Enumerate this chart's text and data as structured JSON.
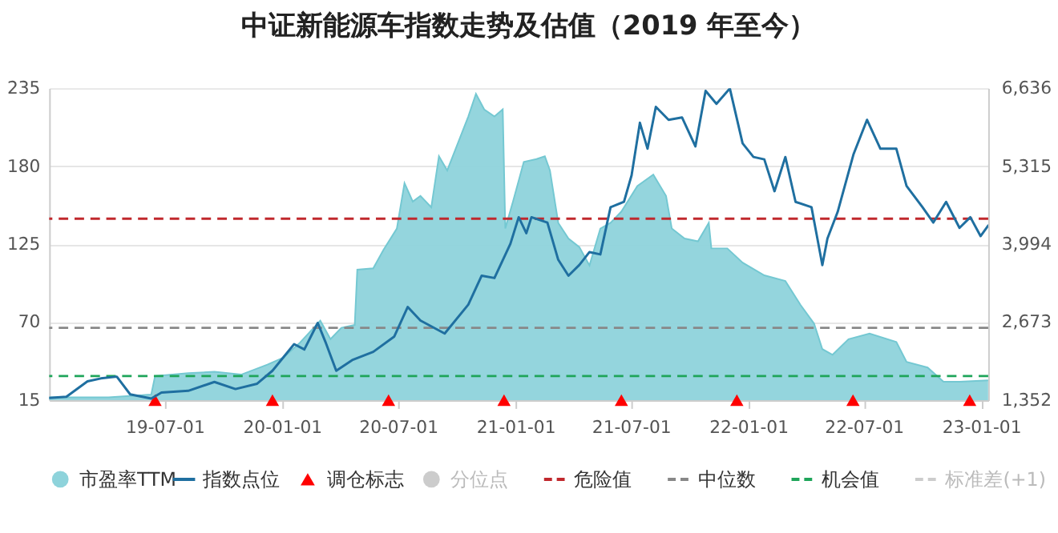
{
  "chart_data": {
    "type": "area",
    "title": "中证新能源车指数走势及估值（2019 年至今）",
    "xlim": [
      "2019-01-01",
      "2023-01-12"
    ],
    "xticks": [
      {
        "value": "2019-07-01",
        "label": "19-07-01"
      },
      {
        "value": "2020-01-01",
        "label": "20-01-01"
      },
      {
        "value": "2020-07-01",
        "label": "20-07-01"
      },
      {
        "value": "2021-01-01",
        "label": "21-01-01"
      },
      {
        "value": "2021-07-01",
        "label": "21-07-01"
      },
      {
        "value": "2022-01-01",
        "label": "22-01-01"
      },
      {
        "value": "2022-07-01",
        "label": "22-07-01"
      },
      {
        "value": "2023-01-01",
        "label": "23-01-01"
      }
    ],
    "ylim": [
      15,
      235
    ],
    "yticks": [
      15,
      70,
      125,
      180,
      235
    ],
    "y2lim": [
      1352,
      6636
    ],
    "y2ticks": [
      {
        "value": 1352,
        "label": "1,352"
      },
      {
        "value": 2673,
        "label": "2,673"
      },
      {
        "value": 3994,
        "label": "3,994"
      },
      {
        "value": 5315,
        "label": "5,315"
      },
      {
        "value": 6636,
        "label": "6,636"
      }
    ],
    "grid": "y",
    "legend": "bottom",
    "series": [
      {
        "name": "市盈率TTM",
        "color": "#8ed3db",
        "x": [
          "2019-01-01",
          "2019-04-04",
          "2019-06-10",
          "2019-06-16",
          "2019-08-07",
          "2019-09-17",
          "2019-10-29",
          "2019-12-09",
          "2020-01-03",
          "2020-01-28",
          "2020-03-01",
          "2020-03-17",
          "2020-04-03",
          "2020-04-24",
          "2020-04-28",
          "2020-05-23",
          "2020-06-08",
          "2020-06-29",
          "2020-07-11",
          "2020-07-24",
          "2020-08-05",
          "2020-08-22",
          "2020-09-03",
          "2020-09-16",
          "2020-10-19",
          "2020-10-31",
          "2020-11-13",
          "2020-11-29",
          "2020-12-12",
          "2020-12-16",
          "2020-12-28",
          "2021-01-14",
          "2021-02-03",
          "2021-02-16",
          "2021-02-24",
          "2021-03-09",
          "2021-03-25",
          "2021-04-11",
          "2021-04-27",
          "2021-05-14",
          "2021-05-30",
          "2021-06-16",
          "2021-07-11",
          "2021-08-05",
          "2021-08-25",
          "2021-09-03",
          "2021-09-23",
          "2021-10-14",
          "2021-10-31",
          "2021-11-04",
          "2021-11-29",
          "2021-12-23",
          "2022-01-26",
          "2022-02-28",
          "2022-03-24",
          "2022-04-14",
          "2022-04-27",
          "2022-05-13",
          "2022-06-07",
          "2022-07-10",
          "2022-08-21",
          "2022-09-06",
          "2022-10-09",
          "2022-11-03",
          "2022-11-28",
          "2023-01-12"
        ],
        "values": [
          17,
          17,
          19,
          32,
          34,
          35,
          33,
          40,
          45,
          55,
          71,
          58,
          66,
          68,
          107,
          108,
          121,
          136,
          168,
          155,
          159,
          151,
          187,
          177,
          215,
          231,
          220,
          215,
          220,
          136,
          155,
          183,
          185,
          187,
          177,
          140,
          129,
          123,
          110,
          136,
          140,
          148,
          166,
          174,
          159,
          136,
          129,
          127,
          140,
          122,
          122,
          112,
          103,
          99,
          82,
          69,
          51,
          47,
          58,
          62,
          56,
          42,
          38,
          28,
          28,
          29
        ]
      },
      {
        "name": "指数点位",
        "type": "line",
        "axis": "y2",
        "color": "#1f6fa0",
        "x": [
          "2019-01-01",
          "2019-01-28",
          "2019-03-02",
          "2019-03-23",
          "2019-04-17",
          "2019-05-08",
          "2019-06-10",
          "2019-06-26",
          "2019-08-07",
          "2019-09-17",
          "2019-10-20",
          "2019-11-23",
          "2019-12-17",
          "2020-01-20",
          "2020-02-05",
          "2020-02-26",
          "2020-03-09",
          "2020-03-26",
          "2020-04-20",
          "2020-05-23",
          "2020-06-25",
          "2020-07-16",
          "2020-08-05",
          "2020-09-12",
          "2020-10-19",
          "2020-11-09",
          "2020-11-29",
          "2020-12-24",
          "2021-01-06",
          "2021-01-18",
          "2021-01-26",
          "2021-02-20",
          "2021-03-09",
          "2021-03-25",
          "2021-04-11",
          "2021-04-27",
          "2021-05-14",
          "2021-05-30",
          "2021-06-20",
          "2021-07-02",
          "2021-07-15",
          "2021-07-27",
          "2021-08-09",
          "2021-08-29",
          "2021-09-19",
          "2021-10-10",
          "2021-10-26",
          "2021-11-12",
          "2021-12-03",
          "2021-12-23",
          "2022-01-09",
          "2022-01-26",
          "2022-02-11",
          "2022-02-28",
          "2022-03-16",
          "2022-04-10",
          "2022-04-27",
          "2022-05-05",
          "2022-05-21",
          "2022-06-15",
          "2022-07-06",
          "2022-07-27",
          "2022-08-21",
          "2022-09-06",
          "2022-10-01",
          "2022-10-18",
          "2022-11-07",
          "2022-11-28",
          "2022-12-15",
          "2022-12-31",
          "2023-01-12"
        ],
        "values": [
          1390,
          1410,
          1670,
          1720,
          1750,
          1450,
          1380,
          1480,
          1510,
          1660,
          1540,
          1630,
          1850,
          2300,
          2210,
          2660,
          2340,
          1850,
          2030,
          2170,
          2430,
          2930,
          2700,
          2480,
          2970,
          3460,
          3420,
          4000,
          4450,
          4180,
          4450,
          4360,
          3730,
          3460,
          3640,
          3860,
          3820,
          4620,
          4710,
          5160,
          6050,
          5610,
          6320,
          6100,
          6140,
          5650,
          6590,
          6370,
          6630,
          5700,
          5470,
          5430,
          4890,
          5470,
          4710,
          4620,
          3640,
          4090,
          4540,
          5520,
          6100,
          5610,
          5610,
          4980,
          4620,
          4360,
          4710,
          4270,
          4450,
          4130,
          4310
        ]
      },
      {
        "name": "调仓标志",
        "type": "scatter",
        "marker": "triangle",
        "color": "#ff0000",
        "x": [
          "2019-06-16",
          "2019-12-17",
          "2020-06-16",
          "2020-12-14",
          "2021-06-16",
          "2021-12-14",
          "2022-06-14",
          "2022-12-14"
        ],
        "values": [
          15,
          15,
          15,
          15,
          15,
          15,
          15,
          15
        ]
      },
      {
        "name": "分位点",
        "type": "scatter",
        "marker": "circle",
        "color": "#cccccc"
      },
      {
        "name": "标准差(+1)",
        "type": "line",
        "line_style": "dashed",
        "color": "#cccccc"
      }
    ],
    "ref_lines": [
      {
        "axis": "y",
        "value": 143,
        "label": "危险值",
        "color": "#c0282d",
        "line_style": "dashed"
      },
      {
        "axis": "y",
        "value": 66,
        "label": "中位数",
        "color": "#888888",
        "line_style": "dashed"
      },
      {
        "axis": "y",
        "value": 32,
        "label": "机会值",
        "color": "#1fa55a",
        "line_style": "dashed"
      }
    ]
  }
}
